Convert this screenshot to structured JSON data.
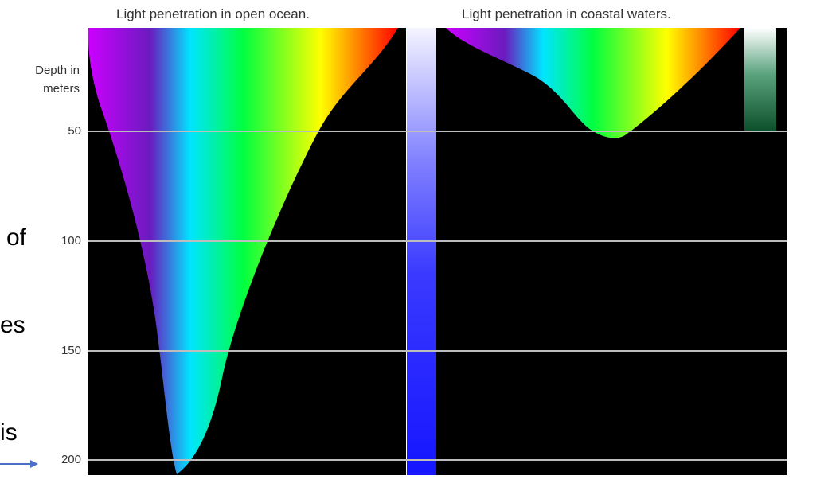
{
  "panels": {
    "open_ocean_title": "Light penetration in open ocean.",
    "coastal_title": "Light penetration in coastal waters."
  },
  "axis": {
    "title_line1": "Depth in",
    "title_line2": "meters",
    "ticks": [
      "50",
      "100",
      "150",
      "200"
    ]
  },
  "side_text": {
    "fragment_1": "of",
    "fragment_2": "es",
    "fragment_3": "is"
  },
  "colors": {
    "background": "#000000",
    "gridline": "#bdbdbd",
    "arrow": "#4a6fc7",
    "spectrum": [
      "#cc00ff",
      "#6a1bbf",
      "#00e5ff",
      "#00ff40",
      "#ffff00",
      "#ff0000"
    ]
  }
}
